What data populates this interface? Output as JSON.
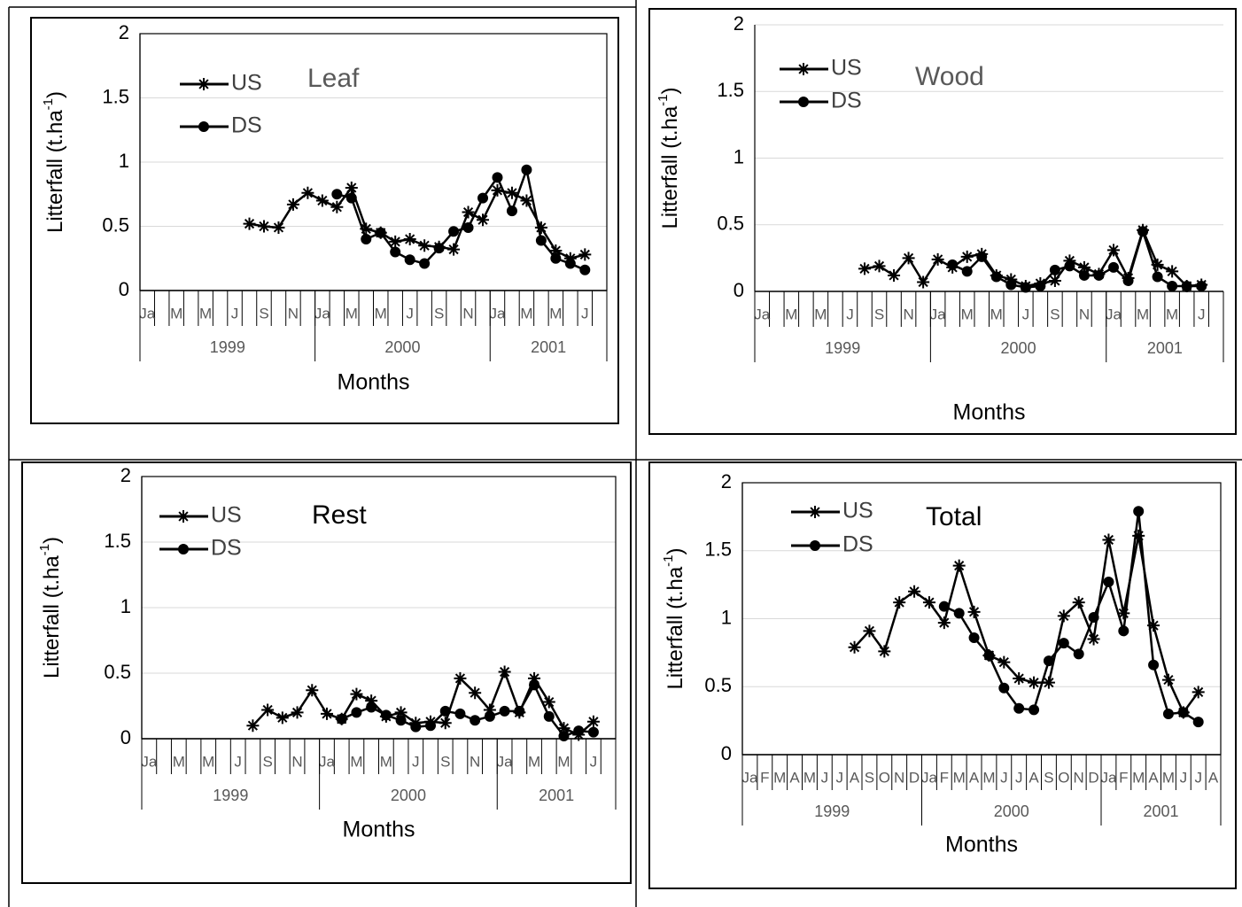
{
  "chart_data": [
    {
      "type": "line",
      "title": "Leaf",
      "title_color": "#595959",
      "frame": true,
      "ylabel": [
        "Litterfall (t.ha",
        "-1",
        ")"
      ],
      "xlabel": "Months",
      "categories": [
        "Ja",
        null,
        "M",
        null,
        "M",
        null,
        "J",
        null,
        "S",
        null,
        "N",
        null,
        "Ja",
        null,
        "M",
        null,
        "M",
        null,
        "J",
        null,
        "S",
        null,
        "N",
        null,
        "Ja",
        null,
        "M",
        null,
        "M",
        null,
        "J",
        null
      ],
      "groups": [
        {
          "label": "1999",
          "months": 12
        },
        {
          "label": "2000",
          "months": 12
        },
        {
          "label": "2001",
          "months": 8
        }
      ],
      "ylim": [
        0,
        2
      ],
      "yticks": [
        0,
        0.5,
        1,
        1.5,
        2
      ],
      "grid": true,
      "series": [
        {
          "name": "US",
          "color": "#000000",
          "marker": "asterisk",
          "values": [
            null,
            null,
            null,
            null,
            null,
            null,
            null,
            0.52,
            0.5,
            0.49,
            0.67,
            0.76,
            0.7,
            0.65,
            0.8,
            0.48,
            0.45,
            0.38,
            0.4,
            0.35,
            0.34,
            0.32,
            0.61,
            0.55,
            0.78,
            0.76,
            0.7,
            0.49,
            0.31,
            0.25,
            0.28,
            null
          ]
        },
        {
          "name": "DS",
          "color": "#000000",
          "marker": "circle",
          "values": [
            null,
            null,
            null,
            null,
            null,
            null,
            null,
            null,
            null,
            null,
            null,
            null,
            null,
            0.75,
            0.72,
            0.4,
            0.45,
            0.3,
            0.24,
            0.21,
            0.33,
            0.46,
            0.49,
            0.72,
            0.88,
            0.62,
            0.94,
            0.39,
            0.25,
            0.21,
            0.16,
            null
          ]
        }
      ]
    },
    {
      "type": "line",
      "title": "Wood",
      "title_color": "#595959",
      "frame": false,
      "ylabel": [
        "Litterfall (t.ha",
        "-1",
        ")"
      ],
      "xlabel": "Months",
      "categories": [
        "Ja",
        null,
        "M",
        null,
        "M",
        null,
        "J",
        null,
        "S",
        null,
        "N",
        null,
        "Ja",
        null,
        "M",
        null,
        "M",
        null,
        "J",
        null,
        "S",
        null,
        "N",
        null,
        "Ja",
        null,
        "M",
        null,
        "M",
        null,
        "J",
        null
      ],
      "groups": [
        {
          "label": "1999",
          "months": 12
        },
        {
          "label": "2000",
          "months": 12
        },
        {
          "label": "2001",
          "months": 8
        }
      ],
      "ylim": [
        0,
        2
      ],
      "yticks": [
        0,
        0.5,
        1,
        1.5,
        2
      ],
      "grid": true,
      "series": [
        {
          "name": "US",
          "color": "#000000",
          "marker": "asterisk",
          "values": [
            null,
            null,
            null,
            null,
            null,
            null,
            null,
            0.17,
            0.19,
            0.12,
            0.25,
            0.07,
            0.24,
            0.18,
            0.26,
            0.28,
            0.12,
            0.09,
            0.04,
            0.06,
            0.08,
            0.23,
            0.18,
            0.13,
            0.31,
            0.1,
            0.46,
            0.2,
            0.15,
            0.04,
            0.05,
            null
          ]
        },
        {
          "name": "DS",
          "color": "#000000",
          "marker": "circle",
          "values": [
            null,
            null,
            null,
            null,
            null,
            null,
            null,
            null,
            null,
            null,
            null,
            null,
            null,
            0.2,
            0.15,
            0.26,
            0.11,
            0.05,
            0.03,
            0.04,
            0.16,
            0.19,
            0.12,
            0.12,
            0.18,
            0.08,
            0.45,
            0.11,
            0.04,
            0.04,
            0.04,
            null
          ]
        }
      ]
    },
    {
      "type": "line",
      "title": "Rest",
      "title_color": "#000000",
      "frame": true,
      "ylabel": [
        "Litterfall (t.ha",
        "-1",
        ")"
      ],
      "xlabel": "Months",
      "categories": [
        "Ja",
        null,
        "M",
        null,
        "M",
        null,
        "J",
        null,
        "S",
        null,
        "N",
        null,
        "Ja",
        null,
        "M",
        null,
        "M",
        null,
        "J",
        null,
        "S",
        null,
        "N",
        null,
        "Ja",
        null,
        "M",
        null,
        "M",
        null,
        "J",
        null
      ],
      "groups": [
        {
          "label": "1999",
          "months": 12
        },
        {
          "label": "2000",
          "months": 12
        },
        {
          "label": "2001",
          "months": 8
        }
      ],
      "ylim": [
        0,
        2
      ],
      "yticks": [
        0,
        0.5,
        1,
        1.5,
        2
      ],
      "grid": true,
      "series": [
        {
          "name": "US",
          "color": "#000000",
          "marker": "asterisk",
          "values": [
            null,
            null,
            null,
            null,
            null,
            null,
            null,
            0.1,
            0.22,
            0.16,
            0.2,
            0.37,
            0.19,
            0.15,
            0.34,
            0.29,
            0.17,
            0.2,
            0.12,
            0.13,
            0.12,
            0.46,
            0.35,
            0.22,
            0.51,
            0.2,
            0.46,
            0.28,
            0.08,
            0.03,
            0.13,
            null
          ]
        },
        {
          "name": "DS",
          "color": "#000000",
          "marker": "circle",
          "values": [
            null,
            null,
            null,
            null,
            null,
            null,
            null,
            null,
            null,
            null,
            null,
            null,
            null,
            0.15,
            0.2,
            0.24,
            0.18,
            0.14,
            0.09,
            0.1,
            0.21,
            0.19,
            0.14,
            0.17,
            0.21,
            0.21,
            0.41,
            0.17,
            0.02,
            0.06,
            0.05,
            null
          ]
        }
      ]
    },
    {
      "type": "line",
      "title": "Total",
      "title_color": "#000000",
      "frame": true,
      "ylabel": [
        "Litterfall (t.ha",
        "-1",
        ")"
      ],
      "xlabel": "Months",
      "categories": [
        "Ja",
        "F",
        "M",
        "A",
        "M",
        "J",
        "J",
        "A",
        "S",
        "O",
        "N",
        "D",
        "Ja",
        "F",
        "M",
        "A",
        "M",
        "J",
        "J",
        "A",
        "S",
        "O",
        "N",
        "D",
        "Ja",
        "F",
        "M",
        "A",
        "M",
        "J",
        "J",
        "A"
      ],
      "groups": [
        {
          "label": "1999",
          "months": 12
        },
        {
          "label": "2000",
          "months": 12
        },
        {
          "label": "2001",
          "months": 8
        }
      ],
      "ylim": [
        0,
        2
      ],
      "yticks": [
        0,
        0.5,
        1,
        1.5,
        2
      ],
      "grid": true,
      "series": [
        {
          "name": "US",
          "color": "#000000",
          "marker": "asterisk",
          "values": [
            null,
            null,
            null,
            null,
            null,
            null,
            null,
            0.79,
            0.91,
            0.76,
            1.12,
            1.2,
            1.12,
            0.97,
            1.39,
            1.05,
            0.73,
            0.68,
            0.56,
            0.53,
            0.53,
            1.02,
            1.12,
            0.85,
            1.58,
            1.04,
            1.61,
            0.95,
            0.55,
            0.31,
            0.46,
            null
          ]
        },
        {
          "name": "DS",
          "color": "#000000",
          "marker": "circle",
          "values": [
            null,
            null,
            null,
            null,
            null,
            null,
            null,
            null,
            null,
            null,
            null,
            null,
            null,
            1.09,
            1.04,
            0.86,
            0.73,
            0.49,
            0.34,
            0.33,
            0.69,
            0.82,
            0.74,
            1.01,
            1.27,
            0.91,
            1.79,
            0.66,
            0.3,
            0.31,
            0.24,
            null
          ]
        }
      ]
    }
  ]
}
